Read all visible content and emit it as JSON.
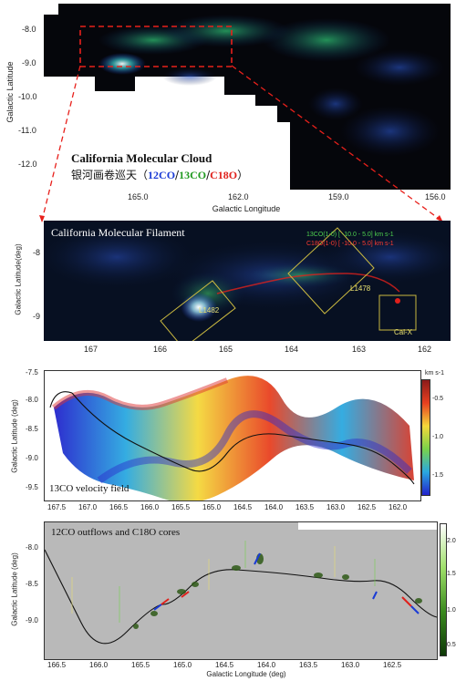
{
  "panel1": {
    "title": "California Molecular Cloud",
    "subtitle_cn": "银河画卷巡天",
    "subtitle_paren_open": "（",
    "co12": "12CO",
    "slash1": "/",
    "co13": "13CO",
    "slash2": "/",
    "c18o": "C18O",
    "subtitle_paren_close": "）",
    "xlabel": "Galactic Longitude",
    "ylabel": "Galactic Latitude",
    "xticks": [
      "165.0",
      "162.0",
      "159.0",
      "156.0"
    ],
    "yticks": [
      "-8.0",
      "-9.0",
      "-10.0",
      "-11.0",
      "-12.0"
    ]
  },
  "panel2": {
    "title": "California Molecular Filament",
    "legend_green": "13CO(1-0) [ -10.0 - 5.0] km s-1",
    "legend_red": "C18O(1-0) [ -10.0 - 5.0] km s-1",
    "labels": [
      "L1482",
      "L1478",
      "Cal-X"
    ],
    "ylabel": "Galactic Latitude(deg)",
    "xticks": [
      "167",
      "166",
      "165",
      "164",
      "163",
      "162"
    ],
    "yticks": [
      "-8",
      "-9"
    ]
  },
  "panel3": {
    "label": "13CO velocity field",
    "ylabel": "Galactic Latitude (deg)",
    "xticks": [
      "167.5",
      "167.0",
      "166.5",
      "166.0",
      "165.5",
      "165.0",
      "164.5",
      "164.0",
      "163.5",
      "163.0",
      "162.5",
      "162.0"
    ],
    "yticks": [
      "-7.5",
      "-8.0",
      "-8.5",
      "-9.0",
      "-9.5"
    ],
    "colorbar_unit": "km s-1",
    "colorbar_ticks": [
      "-0.5",
      "-1.0",
      "-1.5"
    ]
  },
  "panel4": {
    "label": "12CO outflows and C18O cores",
    "xlabel": "Galactic Longitude (deg)",
    "ylabel": "Galactic Latitude (deg)",
    "xticks": [
      "166.5",
      "166.0",
      "165.5",
      "165.0",
      "164.5",
      "164.0",
      "163.5",
      "163.0",
      "162.5"
    ],
    "yticks": [
      "-8.0",
      "-8.5",
      "-9.0"
    ],
    "colorbar_ticks": [
      "2.0",
      "1.5",
      "1.0",
      "0.5"
    ]
  },
  "colors": {
    "co12": "#1a3bd6",
    "co13": "#1f9a1f",
    "c18o": "#e0201b",
    "zoom_box": "#e8201b",
    "region_box": "#c9b840"
  }
}
